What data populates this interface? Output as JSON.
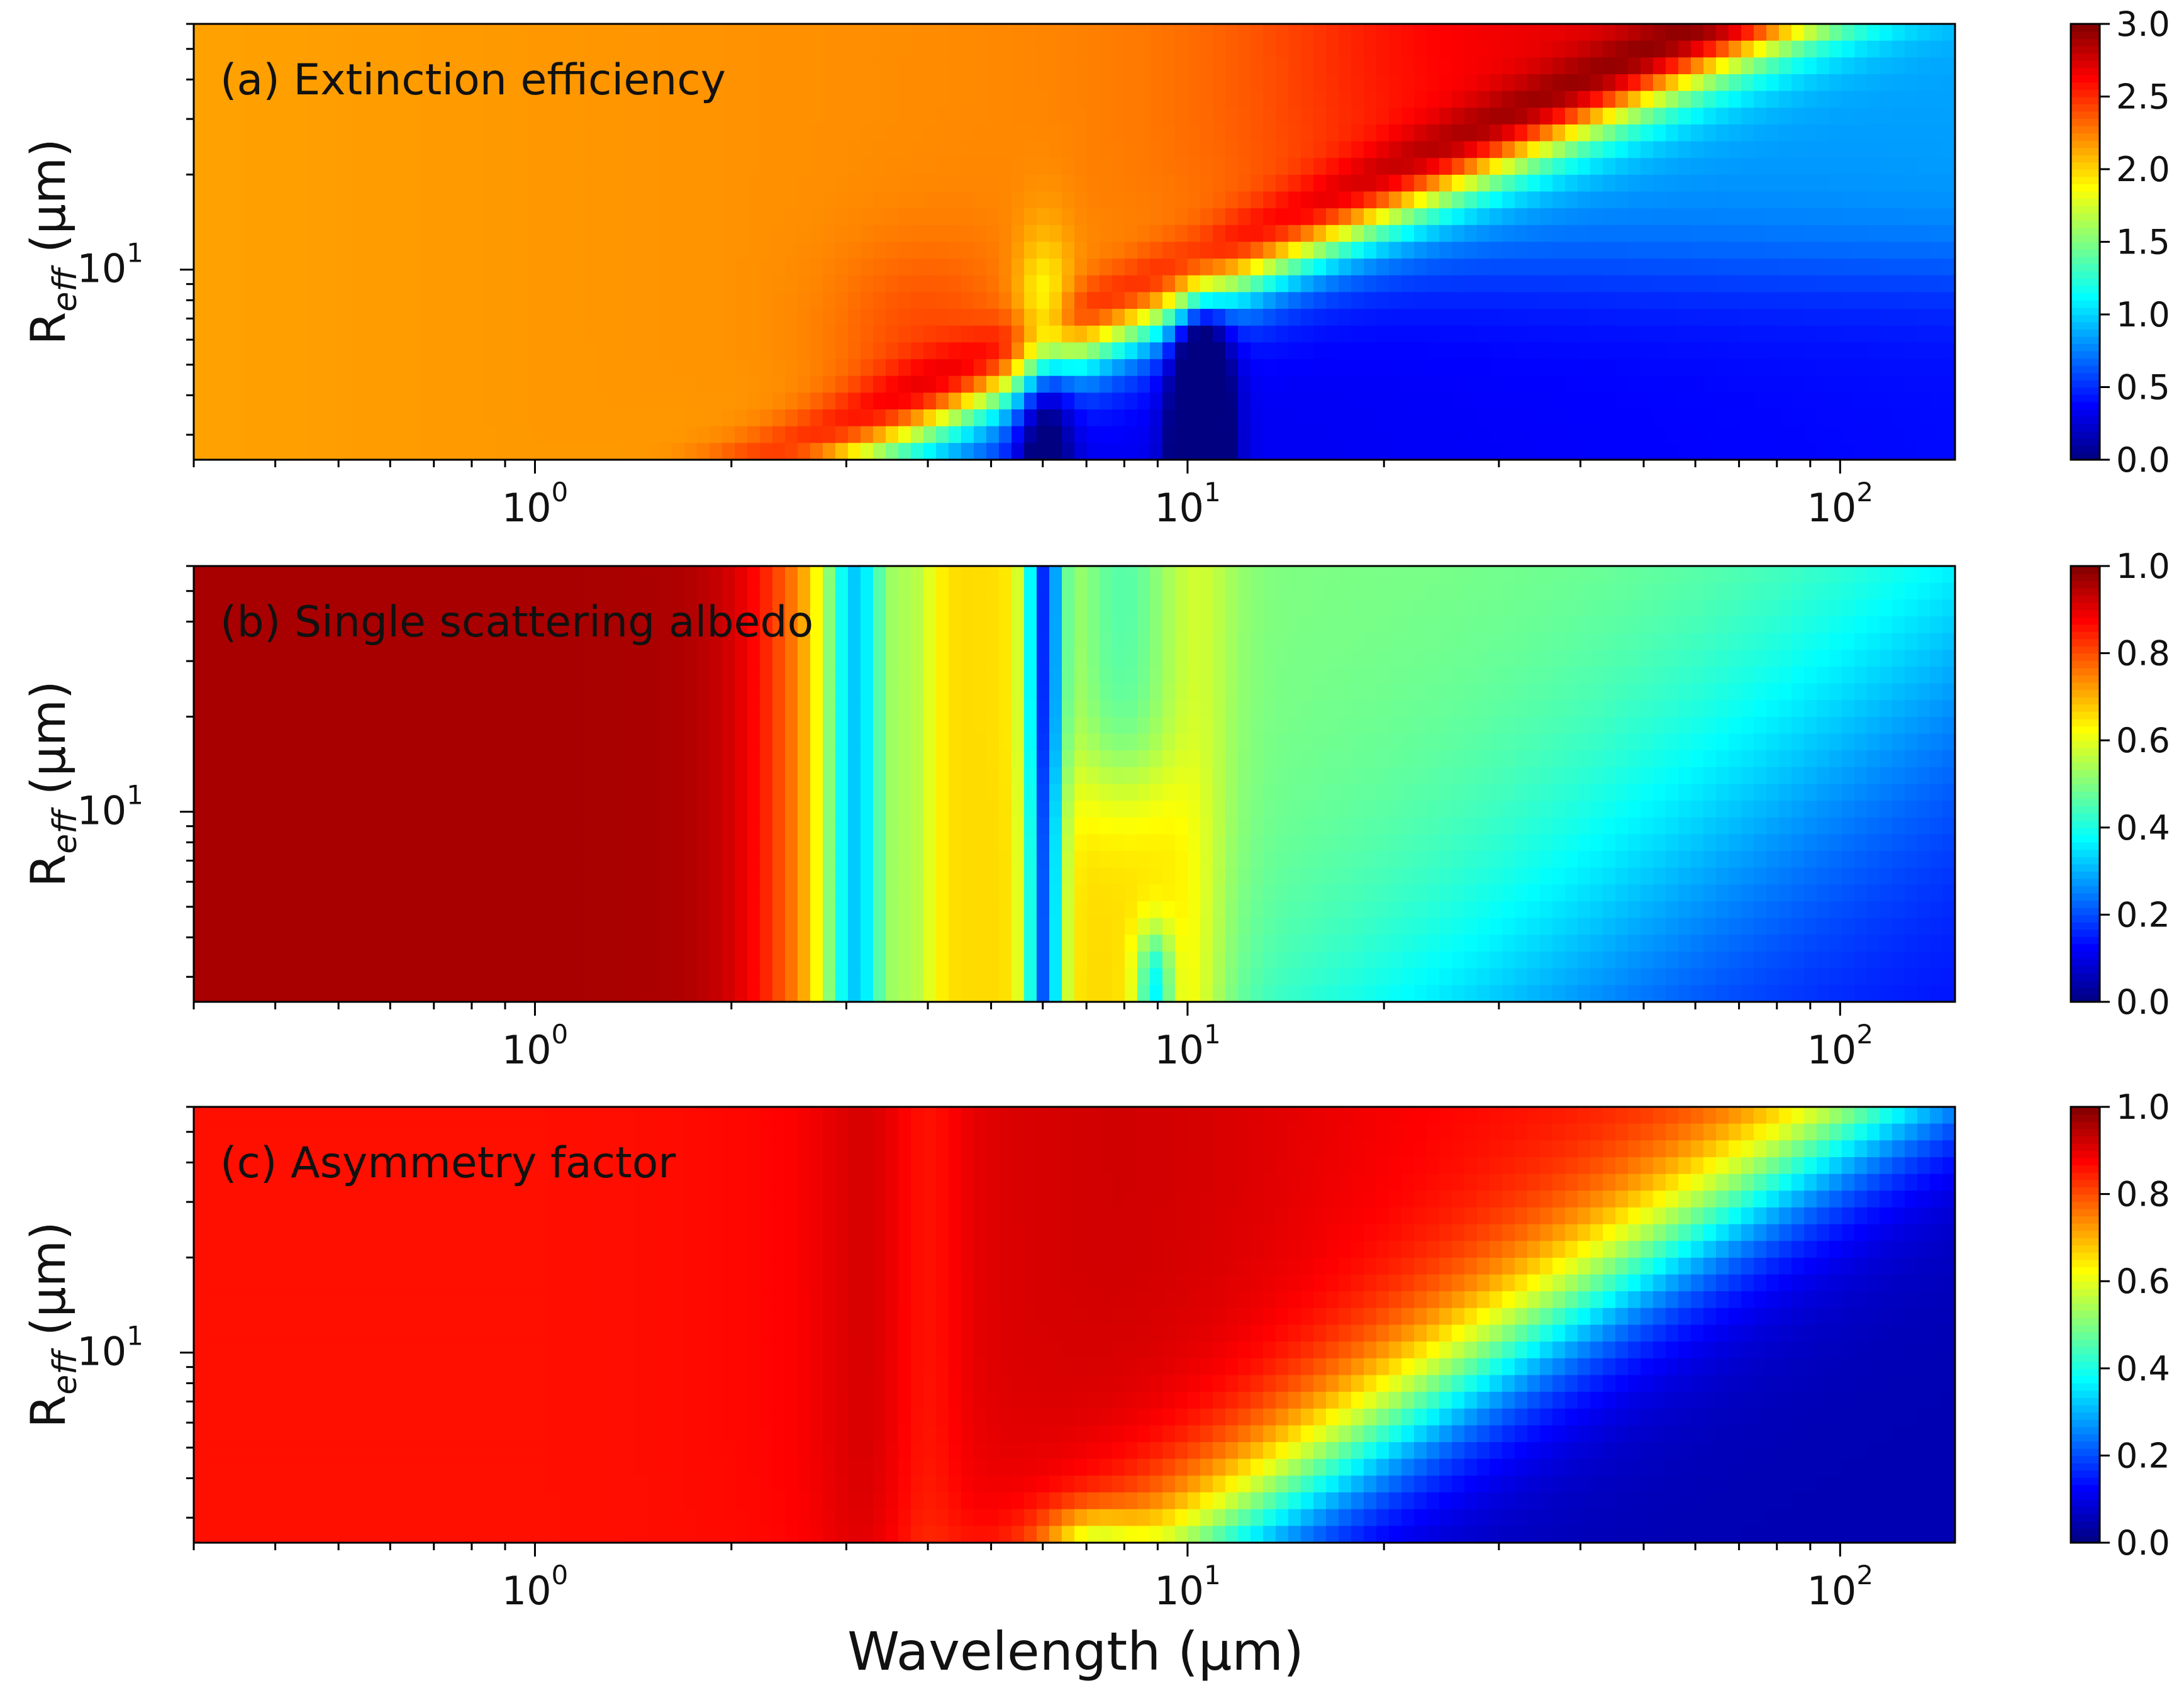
{
  "figure": {
    "xlabel": "Wavelength (μm)",
    "ylabel": "R",
    "ylabel_sub": "eff",
    "ylabel_unit": " (μm)"
  },
  "chart_data": [
    {
      "type": "heatmap",
      "title": "(a) Extinction efficiency",
      "x_scale": "log",
      "y_scale": "log",
      "xlim": [
        0.3,
        150
      ],
      "ylim": [
        2.5,
        60
      ],
      "x_ticks": [
        {
          "value": 1,
          "label": "10",
          "exp": "0"
        },
        {
          "value": 10,
          "label": "10",
          "exp": "1"
        },
        {
          "value": 100,
          "label": "10",
          "exp": "2"
        }
      ],
      "y_ticks": [
        {
          "value": 10,
          "label": "10",
          "exp": "1"
        }
      ],
      "colormap": "jet",
      "clim": [
        0,
        3
      ],
      "colorbar_ticks": [
        "0.0",
        "0.5",
        "1.0",
        "1.5",
        "2.0",
        "2.5",
        "3.0"
      ],
      "field": "extinction"
    },
    {
      "type": "heatmap",
      "title": "(b) Single scattering albedo",
      "x_scale": "log",
      "y_scale": "log",
      "xlim": [
        0.3,
        150
      ],
      "ylim": [
        2.5,
        60
      ],
      "x_ticks": [
        {
          "value": 1,
          "label": "10",
          "exp": "0"
        },
        {
          "value": 10,
          "label": "10",
          "exp": "1"
        },
        {
          "value": 100,
          "label": "10",
          "exp": "2"
        }
      ],
      "y_ticks": [
        {
          "value": 10,
          "label": "10",
          "exp": "1"
        }
      ],
      "colormap": "jet",
      "clim": [
        0,
        1
      ],
      "colorbar_ticks": [
        "0.0",
        "0.2",
        "0.4",
        "0.6",
        "0.8",
        "1.0"
      ],
      "field": "albedo"
    },
    {
      "type": "heatmap",
      "title": "(c) Asymmetry factor",
      "x_scale": "log",
      "y_scale": "log",
      "xlim": [
        0.3,
        150
      ],
      "ylim": [
        2.5,
        60
      ],
      "x_ticks": [
        {
          "value": 1,
          "label": "10",
          "exp": "0"
        },
        {
          "value": 10,
          "label": "10",
          "exp": "1"
        },
        {
          "value": 100,
          "label": "10",
          "exp": "2"
        }
      ],
      "y_ticks": [
        {
          "value": 10,
          "label": "10",
          "exp": "1"
        }
      ],
      "colormap": "jet",
      "clim": [
        0,
        1
      ],
      "colorbar_ticks": [
        "0.0",
        "0.2",
        "0.4",
        "0.6",
        "0.8",
        "1.0"
      ],
      "field": "asymmetry"
    }
  ]
}
